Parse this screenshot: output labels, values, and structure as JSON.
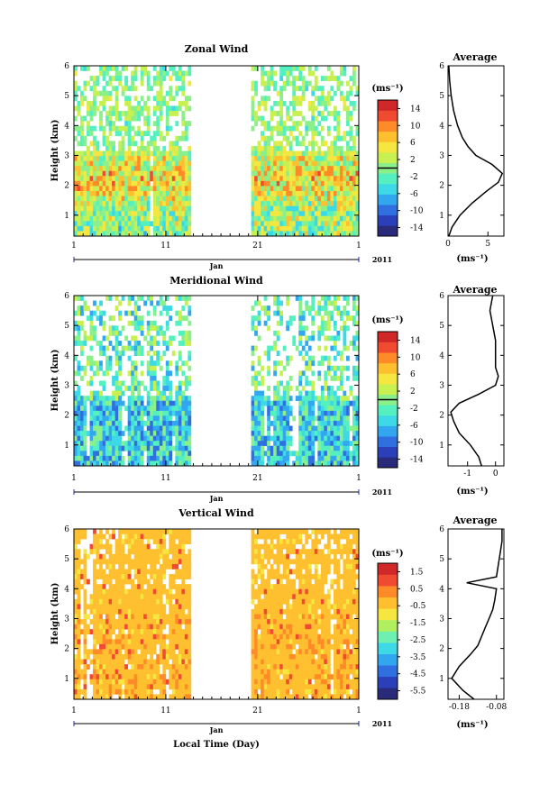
{
  "chart_data": [
    {
      "type": "heatmap",
      "title": "Zonal Wind",
      "ylabel": "Height (km)",
      "yticks": [
        "1",
        "2",
        "3",
        "4",
        "5",
        "6"
      ],
      "ylim": [
        0.3,
        6.0
      ],
      "xticks": [
        "1",
        "11",
        "21",
        "1"
      ],
      "xlim": [
        1,
        32
      ],
      "month_label": "Jan",
      "year_label": "2011",
      "data_gap_days": [
        14,
        20
      ],
      "colorbar": {
        "unit": "(ms⁻¹)",
        "ticks": [
          "14",
          "10",
          "6",
          "2",
          "-2",
          "-6",
          "-10",
          "-14"
        ],
        "range": [
          -16,
          16
        ]
      },
      "profile": {
        "title": "Average",
        "xlabel": "(ms⁻¹)",
        "xticks": [
          "0",
          "5"
        ],
        "xlim": [
          0,
          7
        ],
        "heights": [
          0.3,
          0.6,
          1.0,
          1.4,
          1.8,
          2.1,
          2.4,
          2.7,
          3.0,
          3.3,
          3.6,
          4.0,
          4.5,
          5.0,
          5.5,
          6.0
        ],
        "values": [
          0.1,
          0.5,
          1.5,
          3.0,
          4.8,
          6.3,
          6.8,
          5.5,
          3.5,
          2.5,
          1.8,
          1.2,
          0.7,
          0.4,
          0.2,
          0.1
        ]
      }
    },
    {
      "type": "heatmap",
      "title": "Meridional Wind",
      "ylabel": "Height (km)",
      "yticks": [
        "1",
        "2",
        "3",
        "4",
        "5",
        "6"
      ],
      "ylim": [
        0.3,
        6.0
      ],
      "xticks": [
        "1",
        "11",
        "21",
        "1"
      ],
      "xlim": [
        1,
        32
      ],
      "month_label": "Jan",
      "year_label": "2011",
      "data_gap_days": [
        14,
        20
      ],
      "colorbar": {
        "unit": "(ms⁻¹)",
        "ticks": [
          "14",
          "10",
          "6",
          "2",
          "-2",
          "-6",
          "-10",
          "-14"
        ],
        "range": [
          -16,
          16
        ]
      },
      "profile": {
        "title": "Average",
        "xlabel": "(ms⁻¹)",
        "xticks": [
          "-1",
          "0"
        ],
        "xlim": [
          -1.7,
          0.3
        ],
        "heights": [
          0.3,
          0.6,
          1.0,
          1.4,
          1.8,
          2.1,
          2.4,
          2.7,
          3.0,
          3.3,
          3.6,
          4.0,
          4.5,
          5.0,
          5.5,
          6.0
        ],
        "values": [
          -0.5,
          -0.6,
          -0.9,
          -1.3,
          -1.5,
          -1.6,
          -1.3,
          -0.6,
          0.0,
          0.1,
          0.0,
          0.0,
          0.0,
          -0.1,
          -0.2,
          -0.1
        ]
      }
    },
    {
      "type": "heatmap",
      "title": "Vertical Wind",
      "ylabel": "Height (km)",
      "yticks": [
        "1",
        "2",
        "3",
        "4",
        "5",
        "6"
      ],
      "ylim": [
        0.3,
        6.0
      ],
      "xticks": [
        "1",
        "11",
        "21",
        "1"
      ],
      "xlim": [
        1,
        32
      ],
      "month_label": "Jan",
      "year_label": "2011",
      "xlabel": "Local Time (Day)",
      "data_gap_days": [
        14,
        20
      ],
      "colorbar": {
        "unit": "(ms⁻¹)",
        "ticks": [
          "1.5",
          "0.5",
          "-0.5",
          "-1.5",
          "-2.5",
          "-3.5",
          "-4.5",
          "-5.5"
        ],
        "range": [
          -6,
          2
        ]
      },
      "profile": {
        "title": "Average",
        "xlabel": "(ms⁻¹)",
        "xticks": [
          "-0.18",
          "-0.08"
        ],
        "xlim": [
          -0.21,
          -0.06
        ],
        "heights": [
          0.3,
          0.6,
          1.0,
          1.4,
          1.8,
          2.1,
          2.4,
          2.7,
          3.0,
          3.3,
          3.6,
          4.0,
          4.2,
          4.4,
          4.8,
          5.2,
          5.6,
          6.0
        ],
        "values": [
          -0.14,
          -0.17,
          -0.2,
          -0.18,
          -0.15,
          -0.13,
          -0.12,
          -0.11,
          -0.1,
          -0.09,
          -0.085,
          -0.08,
          -0.16,
          -0.08,
          -0.075,
          -0.07,
          -0.065,
          -0.065
        ]
      }
    }
  ]
}
